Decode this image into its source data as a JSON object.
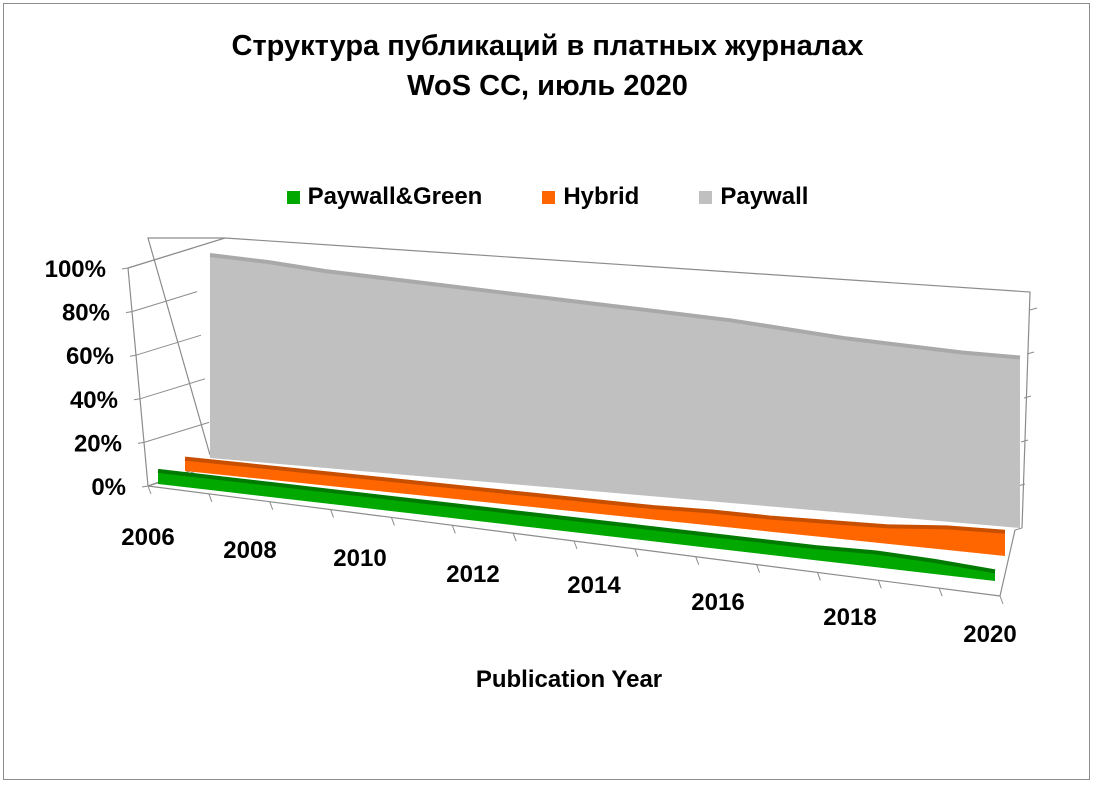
{
  "chart_data": {
    "type": "area",
    "title_lines": [
      "Структура публикаций в платных журналах",
      "WoS CC, июль 2020"
    ],
    "xlabel": "Publication Year",
    "ylabel": "",
    "y_ticks": [
      "0%",
      "20%",
      "40%",
      "60%",
      "80%",
      "100%"
    ],
    "ylim": [
      0,
      100
    ],
    "x_tick_labels": [
      "2006",
      "2008",
      "2010",
      "2012",
      "2014",
      "2016",
      "2018",
      "2020"
    ],
    "years": [
      2006,
      2007,
      2008,
      2009,
      2010,
      2011,
      2012,
      2013,
      2014,
      2015,
      2016,
      2017,
      2018,
      2019,
      2020
    ],
    "legend_position": "top",
    "three_d": true,
    "series": [
      {
        "name": "Paywall&Green",
        "color": "#00a800",
        "values": [
          3,
          3,
          3,
          3,
          3,
          3,
          3,
          3,
          3,
          3,
          3,
          3,
          4,
          3,
          1
        ]
      },
      {
        "name": "Hybrid",
        "color": "#ff6600",
        "values": [
          2,
          2,
          2,
          2,
          2,
          2,
          2,
          2,
          2,
          3,
          3,
          4,
          5,
          8,
          9
        ]
      },
      {
        "name": "Paywall",
        "color": "#c0c0c0",
        "values": [
          100,
          99,
          97,
          96,
          95,
          94,
          93,
          92,
          91,
          90,
          88,
          86,
          85,
          84,
          84
        ]
      }
    ]
  }
}
